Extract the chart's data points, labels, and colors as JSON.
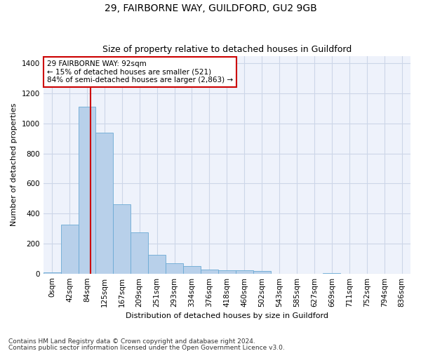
{
  "title1": "29, FAIRBORNE WAY, GUILDFORD, GU2 9GB",
  "title2": "Size of property relative to detached houses in Guildford",
  "xlabel": "Distribution of detached houses by size in Guildford",
  "ylabel": "Number of detached properties",
  "footnote1": "Contains HM Land Registry data © Crown copyright and database right 2024.",
  "footnote2": "Contains public sector information licensed under the Open Government Licence v3.0.",
  "bar_labels": [
    "0sqm",
    "42sqm",
    "84sqm",
    "125sqm",
    "167sqm",
    "209sqm",
    "251sqm",
    "293sqm",
    "334sqm",
    "376sqm",
    "418sqm",
    "460sqm",
    "502sqm",
    "543sqm",
    "585sqm",
    "627sqm",
    "669sqm",
    "711sqm",
    "752sqm",
    "794sqm",
    "836sqm"
  ],
  "bar_values": [
    10,
    325,
    1110,
    940,
    460,
    275,
    125,
    70,
    48,
    25,
    22,
    22,
    15,
    0,
    0,
    0,
    5,
    0,
    0,
    0,
    0
  ],
  "bar_color": "#b8d0ea",
  "bar_edge_color": "#6aaad4",
  "grid_color": "#ccd6e8",
  "background_color": "#eef2fb",
  "annotation_line1": "29 FAIRBORNE WAY: 92sqm",
  "annotation_line2": "← 15% of detached houses are smaller (521)",
  "annotation_line3": "84% of semi-detached houses are larger (2,863) →",
  "vline_color": "#cc0000",
  "vline_x": 2.19,
  "annotation_box_edge": "#cc0000",
  "ylim": [
    0,
    1450
  ],
  "yticks": [
    0,
    200,
    400,
    600,
    800,
    1000,
    1200,
    1400
  ],
  "title1_fontsize": 10,
  "title2_fontsize": 9,
  "ylabel_fontsize": 8,
  "xlabel_fontsize": 8,
  "footnote_fontsize": 6.5,
  "tick_fontsize": 7.5
}
